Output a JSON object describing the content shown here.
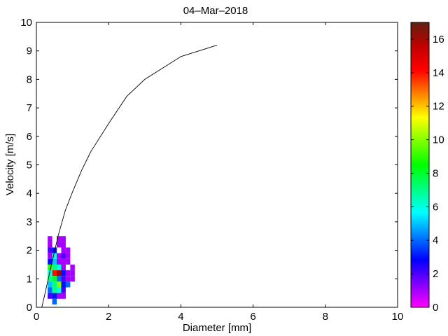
{
  "chart_data": {
    "type": "heatmap",
    "title": "04–Mar–2018",
    "xlabel": "Diameter [mm]",
    "ylabel": "Velocity [m/s]",
    "xlim": [
      0,
      10
    ],
    "ylim": [
      0,
      10
    ],
    "xticks": [
      "0",
      "2",
      "4",
      "6",
      "8",
      "10"
    ],
    "yticks": [
      "0",
      "1",
      "2",
      "3",
      "4",
      "5",
      "6",
      "7",
      "8",
      "9",
      "10"
    ],
    "grid": false,
    "cell_size": {
      "diameter_mm": 0.125,
      "velocity_ms": 0.2
    },
    "cells": [
      {
        "d": 0.375,
        "v": 2.4,
        "count": 1
      },
      {
        "d": 0.625,
        "v": 2.4,
        "count": 1
      },
      {
        "d": 0.75,
        "v": 2.4,
        "count": 1
      },
      {
        "d": 0.375,
        "v": 2.2,
        "count": 1
      },
      {
        "d": 0.625,
        "v": 2.2,
        "count": 1
      },
      {
        "d": 0.75,
        "v": 2.2,
        "count": 1
      },
      {
        "d": 0.375,
        "v": 2.0,
        "count": 2
      },
      {
        "d": 0.5,
        "v": 2.0,
        "count": 3
      },
      {
        "d": 0.75,
        "v": 2.0,
        "count": 1
      },
      {
        "d": 0.875,
        "v": 2.0,
        "count": 1
      },
      {
        "d": 0.375,
        "v": 1.8,
        "count": 1
      },
      {
        "d": 0.5,
        "v": 1.8,
        "count": 6
      },
      {
        "d": 0.625,
        "v": 1.8,
        "count": 1
      },
      {
        "d": 0.75,
        "v": 1.8,
        "count": 2
      },
      {
        "d": 0.875,
        "v": 1.8,
        "count": 1
      },
      {
        "d": 0.375,
        "v": 1.6,
        "count": 3
      },
      {
        "d": 0.5,
        "v": 1.6,
        "count": 5
      },
      {
        "d": 0.625,
        "v": 1.6,
        "count": 1
      },
      {
        "d": 0.75,
        "v": 1.6,
        "count": 1
      },
      {
        "d": 0.875,
        "v": 1.6,
        "count": 1
      },
      {
        "d": 0.375,
        "v": 1.4,
        "count": 9
      },
      {
        "d": 0.5,
        "v": 1.4,
        "count": 7
      },
      {
        "d": 0.625,
        "v": 1.4,
        "count": 6
      },
      {
        "d": 0.75,
        "v": 1.4,
        "count": 1
      },
      {
        "d": 1.0,
        "v": 1.4,
        "count": 1
      },
      {
        "d": 0.375,
        "v": 1.2,
        "count": 6
      },
      {
        "d": 0.5,
        "v": 1.2,
        "count": 14
      },
      {
        "d": 0.625,
        "v": 1.2,
        "count": 16
      },
      {
        "d": 0.75,
        "v": 1.2,
        "count": 3
      },
      {
        "d": 0.875,
        "v": 1.2,
        "count": 1
      },
      {
        "d": 1.0,
        "v": 1.2,
        "count": 1
      },
      {
        "d": 0.375,
        "v": 1.0,
        "count": 7
      },
      {
        "d": 0.5,
        "v": 1.0,
        "count": 8
      },
      {
        "d": 0.625,
        "v": 1.0,
        "count": 4
      },
      {
        "d": 0.75,
        "v": 1.0,
        "count": 2
      },
      {
        "d": 0.875,
        "v": 1.0,
        "count": 1
      },
      {
        "d": 1.0,
        "v": 1.0,
        "count": 1
      },
      {
        "d": 0.375,
        "v": 0.8,
        "count": 5
      },
      {
        "d": 0.5,
        "v": 0.8,
        "count": 7
      },
      {
        "d": 0.625,
        "v": 0.8,
        "count": 10
      },
      {
        "d": 0.75,
        "v": 0.8,
        "count": 3
      },
      {
        "d": 0.875,
        "v": 0.8,
        "count": 4
      },
      {
        "d": 0.375,
        "v": 0.6,
        "count": 4
      },
      {
        "d": 0.5,
        "v": 0.6,
        "count": 7
      },
      {
        "d": 0.625,
        "v": 0.6,
        "count": 6
      },
      {
        "d": 0.75,
        "v": 0.6,
        "count": 2
      },
      {
        "d": 0.375,
        "v": 0.4,
        "count": 2
      },
      {
        "d": 0.5,
        "v": 0.4,
        "count": 3
      },
      {
        "d": 0.625,
        "v": 0.4,
        "count": 1
      },
      {
        "d": 0.75,
        "v": 0.4,
        "count": 1
      },
      {
        "d": 0.5,
        "v": 0.2,
        "count": 4
      }
    ],
    "fall_speed_curve": {
      "x": [
        0.15,
        0.25,
        0.4,
        0.6,
        0.8,
        1.0,
        1.25,
        1.5,
        2.0,
        2.5,
        3.0,
        4.0,
        5.0
      ],
      "y": [
        0.0,
        0.55,
        1.4,
        2.5,
        3.4,
        4.05,
        4.8,
        5.45,
        6.45,
        7.4,
        8.0,
        8.8,
        9.2
      ],
      "color": "#000000"
    },
    "colorbar": {
      "range": [
        0,
        17
      ],
      "ticks": [
        "0",
        "2",
        "4",
        "6",
        "8",
        "10",
        "12",
        "14",
        "16"
      ],
      "colormap": [
        "#ff00ff",
        "#8000ff",
        "#0000ff",
        "#0080ff",
        "#00ffff",
        "#00ff80",
        "#00ff00",
        "#80ff00",
        "#ffff00",
        "#ff8000",
        "#ff0000",
        "#c00000",
        "#602010"
      ]
    }
  }
}
